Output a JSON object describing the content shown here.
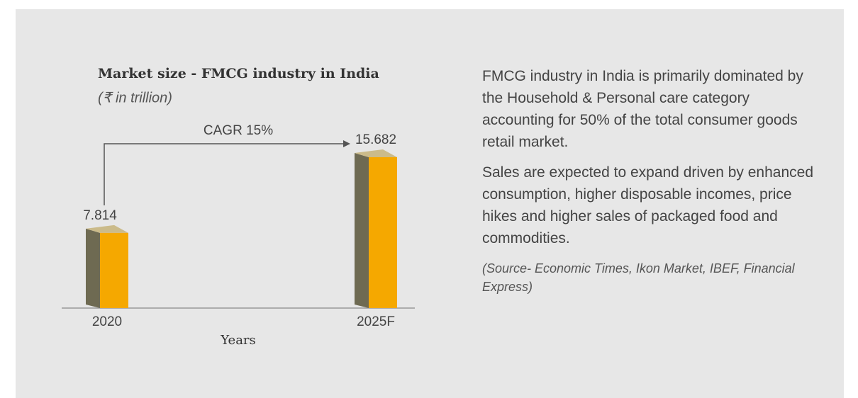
{
  "chart_data": {
    "type": "bar",
    "title": "Market size - FMCG industry in India",
    "subtitle": "(₹ in trillion)",
    "categories": [
      "2020",
      "2025F"
    ],
    "values": [
      7.814,
      15.682
    ],
    "xlabel": "Years",
    "annotation": "CAGR 15%",
    "colors": {
      "front": "#f5a800",
      "side": "#6e6a52",
      "top": "#cbbb8a"
    }
  },
  "text": {
    "paragraphs": [
      "FMCG industry in India is primarily dominated by the Household & Personal care category accounting for 50% of the total consumer goods retail market.",
      "Sales are expected to expand driven by enhanced consumption, higher disposable incomes, price hikes and higher sales of packaged food and commodities."
    ],
    "source": "(Source- Economic Times, Ikon Market, IBEF, Financial Express)"
  }
}
